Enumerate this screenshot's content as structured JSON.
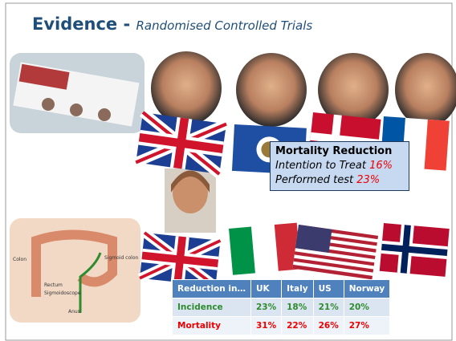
{
  "header": {
    "title": "Evidence -",
    "subtitle": "Randomised Controlled Trials"
  },
  "callout": {
    "title": "Mortality Reduction",
    "lines": [
      {
        "label": "Intention to Treat",
        "value": "16%"
      },
      {
        "label": "Performed test",
        "value": "23%"
      }
    ]
  },
  "anatomy_labels": [
    "Colon",
    "Sigmoid colon",
    "Rectum",
    "Sigmoidoscope",
    "Anus"
  ],
  "table": {
    "columns": [
      "Reduction in…",
      "UK",
      "Italy",
      "US",
      "Norway"
    ],
    "rows": [
      [
        "Incidence",
        "23%",
        "18%",
        "21%",
        "20%"
      ],
      [
        "Mortality",
        "31%",
        "22%",
        "26%",
        "27%"
      ]
    ]
  }
}
